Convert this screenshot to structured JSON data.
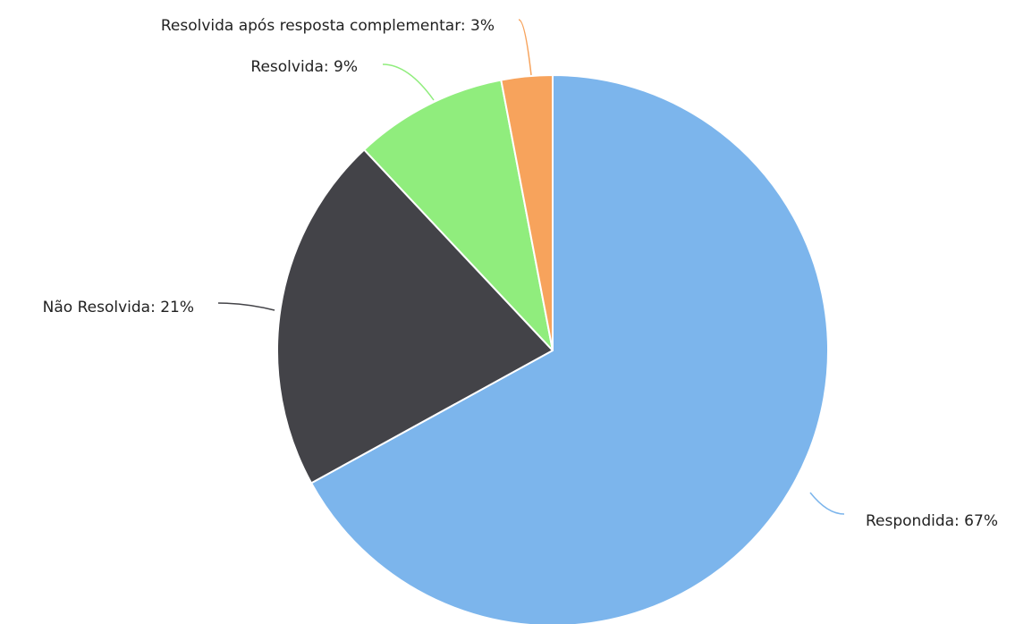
{
  "chart_data": {
    "type": "pie",
    "start_angle_deg": 0,
    "direction": "clockwise",
    "slices": [
      {
        "label": "Respondida",
        "value": 67,
        "color": "#7cb5ec",
        "display": "Respondida: 67%"
      },
      {
        "label": "Não Resolvida",
        "value": 21,
        "color": "#434348",
        "display": "Não Resolvida: 21%"
      },
      {
        "label": "Resolvida",
        "value": 9,
        "color": "#90ed7d",
        "display": "Resolvida: 9%"
      },
      {
        "label": "Resolvida após resposta complementar",
        "value": 3,
        "color": "#f7a35c",
        "display": "Resolvida após resposta complementar: 3%"
      }
    ],
    "unit": "%"
  }
}
